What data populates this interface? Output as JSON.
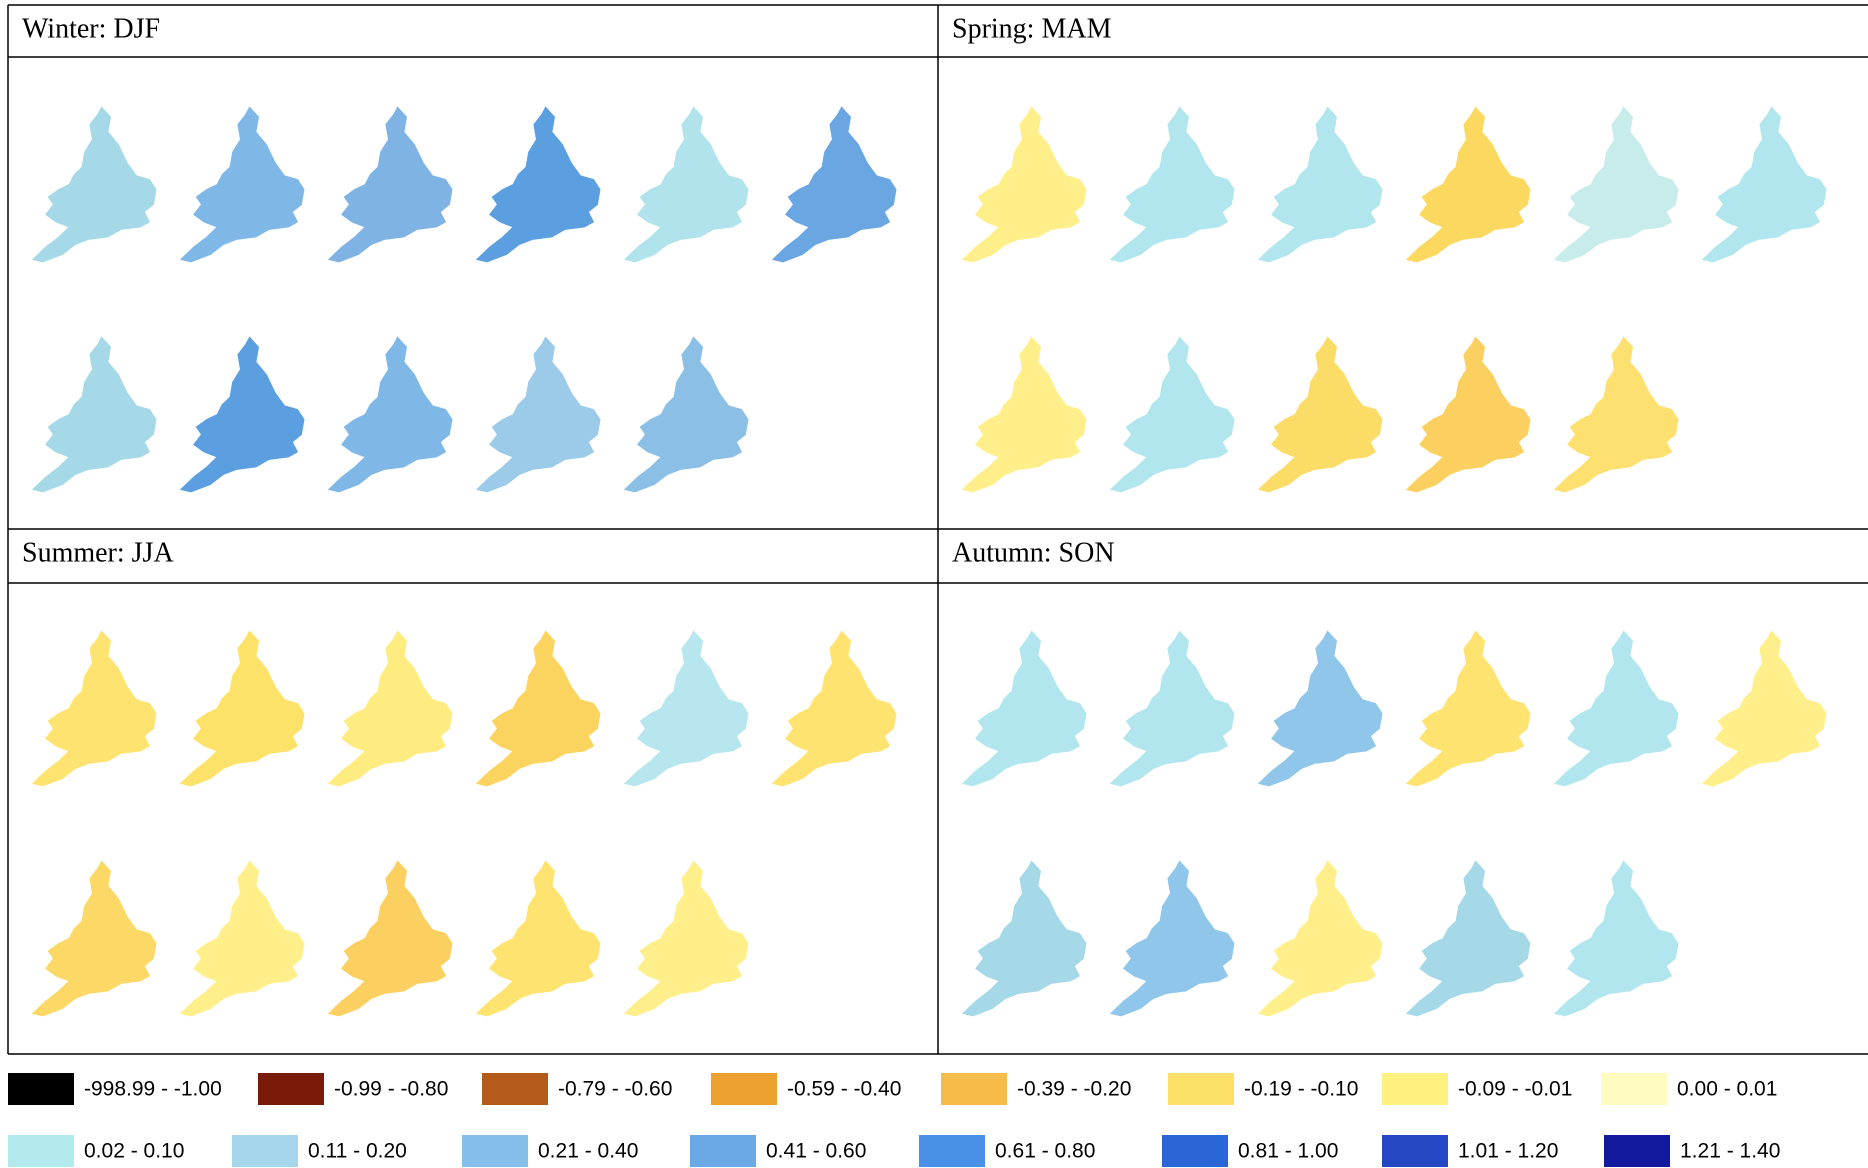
{
  "panels": [
    {
      "title": "Winter: DJF",
      "map_colors": [
        "#a6d9e8",
        "#7fb8e6",
        "#7fb3e3",
        "#5c9fe0",
        "#b0e3ec",
        "#6aa6e2",
        "#a6d9e8",
        "#5c9fe0",
        "#7fb8e6",
        "#9ccbea",
        "#8bbfe6"
      ]
    },
    {
      "title": "Spring: MAM",
      "map_colors": [
        "#ffef8a",
        "#b2e6ee",
        "#b2e6ee",
        "#fbd860",
        "#c8ecea",
        "#b2e6ee",
        "#ffef8a",
        "#b2e6ee",
        "#fbdc66",
        "#fbd060",
        "#fde070"
      ]
    },
    {
      "title": "Summer: JJA",
      "map_colors": [
        "#fee370",
        "#fde26a",
        "#ffec80",
        "#fbd460",
        "#b8e6ee",
        "#fee370",
        "#fcd866",
        "#ffef8a",
        "#fbd060",
        "#fee370",
        "#ffef8a"
      ]
    },
    {
      "title": "Autumn: SON",
      "map_colors": [
        "#b2e6ee",
        "#b2e6ee",
        "#8fc6ea",
        "#fee370",
        "#b2e6ee",
        "#ffef8a",
        "#a6d9e8",
        "#8fc6ea",
        "#ffef8a",
        "#a6d9e8",
        "#b2e6ee"
      ]
    }
  ],
  "legend": [
    {
      "label": "-998.99 - -1.00",
      "color": "#000000"
    },
    {
      "label": "-0.99 - -0.80",
      "color": "#7a1a08"
    },
    {
      "label": "-0.79 - -0.60",
      "color": "#b45a1a"
    },
    {
      "label": "-0.59 - -0.40",
      "color": "#eba030"
    },
    {
      "label": "-0.39 - -0.20",
      "color": "#f5bc4a"
    },
    {
      "label": "-0.19 - -0.10",
      "color": "#fde068"
    },
    {
      "label": "-0.09 - -0.01",
      "color": "#fff080"
    },
    {
      "label": "0.00 - 0.01",
      "color": "#fffac0"
    },
    {
      "label": "0.02 - 0.10",
      "color": "#b2eaee"
    },
    {
      "label": "0.11 - 0.20",
      "color": "#a6d6ec"
    },
    {
      "label": "0.21 - 0.40",
      "color": "#86beea"
    },
    {
      "label": "0.41 - 0.60",
      "color": "#6aa8e6"
    },
    {
      "label": "0.61 - 0.80",
      "color": "#4a90e6"
    },
    {
      "label": "0.81 - 1.00",
      "color": "#2a66d6"
    },
    {
      "label": "1.01 - 1.20",
      "color": "#2448c4"
    },
    {
      "label": "1.21 - 1.40",
      "color": "#141aa0"
    }
  ]
}
